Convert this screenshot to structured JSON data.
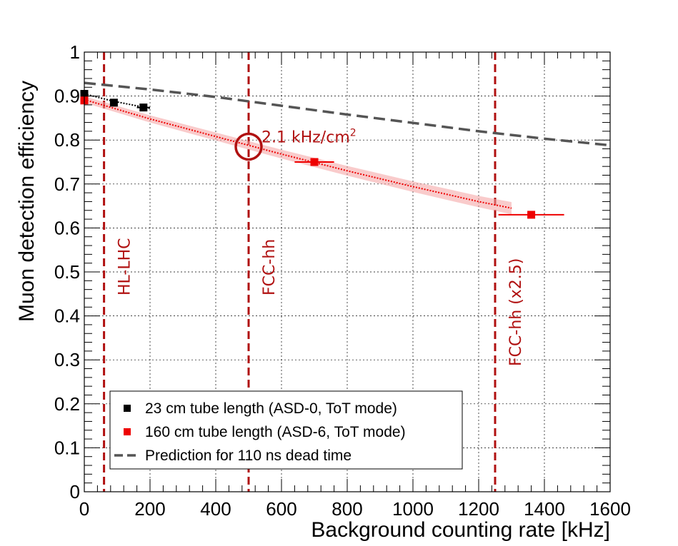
{
  "chart_data": {
    "type": "scatter",
    "xlabel": "Background counting rate [kHz]",
    "ylabel": "Muon detection efficiency",
    "xlim": [
      0,
      1600
    ],
    "ylim": [
      0,
      1
    ],
    "x_ticks": [
      "0",
      "200",
      "400",
      "600",
      "800",
      "1000",
      "1200",
      "1400",
      "1600"
    ],
    "y_ticks": [
      "0",
      "0.1",
      "0.2",
      "0.3",
      "0.4",
      "0.5",
      "0.6",
      "0.7",
      "0.8",
      "0.9",
      "1"
    ],
    "grid": true,
    "legend_position": "bottom-left",
    "series": [
      {
        "name": "23 cm tube length (ASD-0, ToT mode)",
        "color": "#000000",
        "marker": "square",
        "points": [
          {
            "x": 0,
            "y": 0.905,
            "xerr": 5
          },
          {
            "x": 90,
            "y": 0.885,
            "xerr": 10
          },
          {
            "x": 180,
            "y": 0.874,
            "xerr": 20
          }
        ],
        "fit": [
          [
            0,
            0.905
          ],
          [
            90,
            0.888
          ],
          [
            200,
            0.872
          ]
        ]
      },
      {
        "name": "160 cm tube length (ASD-6, ToT mode)",
        "color": "#ee0000",
        "marker": "square",
        "points": [
          {
            "x": 0,
            "y": 0.89,
            "xerr": 5
          },
          {
            "x": 700,
            "y": 0.75,
            "xerr": 60
          },
          {
            "x": 1360,
            "y": 0.63,
            "xerr": 100
          }
        ],
        "fit": [
          [
            0,
            0.892
          ],
          [
            200,
            0.848
          ],
          [
            400,
            0.808
          ],
          [
            600,
            0.768
          ],
          [
            800,
            0.73
          ],
          [
            1000,
            0.694
          ],
          [
            1200,
            0.66
          ],
          [
            1300,
            0.645
          ]
        ],
        "band_halfwidth": 0.012
      },
      {
        "name": "Prediction for 110 ns dead time",
        "color": "#555555",
        "style": "dashed",
        "curve": [
          [
            0,
            0.93
          ],
          [
            200,
            0.915
          ],
          [
            400,
            0.898
          ],
          [
            600,
            0.878
          ],
          [
            800,
            0.858
          ],
          [
            1000,
            0.839
          ],
          [
            1200,
            0.82
          ],
          [
            1400,
            0.803
          ],
          [
            1600,
            0.788
          ]
        ]
      }
    ],
    "vertical_lines": [
      {
        "x": 60,
        "label": "HL-LHC",
        "color": "#b01010"
      },
      {
        "x": 500,
        "label": "FCC-hh",
        "color": "#b01010"
      },
      {
        "x": 1250,
        "label": "FCC-hh (x2.5)",
        "color": "#b01010"
      }
    ],
    "annotation": {
      "text": "2.1 kHz/cm",
      "superscript": "2",
      "x": 500,
      "y": 0.785,
      "color": "#b01010"
    }
  }
}
